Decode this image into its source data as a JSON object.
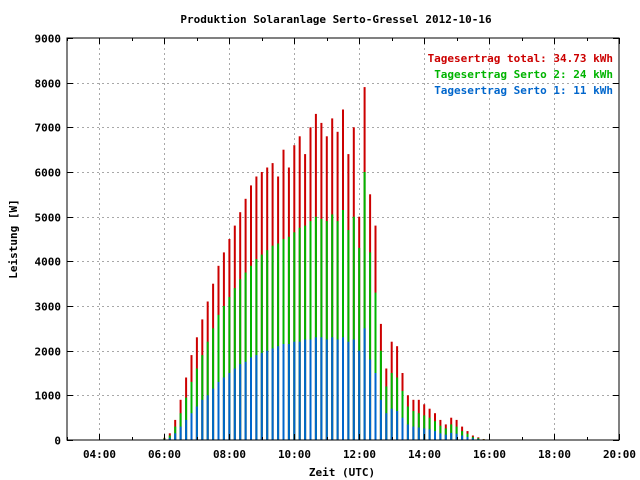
{
  "chart_data": {
    "type": "bar",
    "title": "Produktion Solaranlage Serto-Gressel 2012-10-16",
    "xlabel": "Zeit (UTC)",
    "ylabel": "Leistung [W]",
    "ylim": [
      0,
      9000
    ],
    "xlim": [
      "03:00",
      "20:00"
    ],
    "y_ticks": [
      "0",
      "1000",
      "2000",
      "3000",
      "4000",
      "5000",
      "6000",
      "7000",
      "8000",
      "9000"
    ],
    "x_ticks": [
      "04:00",
      "06:00",
      "08:00",
      "10:00",
      "12:00",
      "14:00",
      "16:00",
      "18:00",
      "20:00"
    ],
    "grid": true,
    "legend_position": "top-right",
    "legend": [
      {
        "label": "Tagesertrag total: 34.73 kWh",
        "color": "#cc0000"
      },
      {
        "label": "Tagesertrag Serto 2: 24 kWh",
        "color": "#00b400"
      },
      {
        "label": "Tagesertrag Serto 1: 11 kWh",
        "color": "#0066cc"
      }
    ],
    "series": [
      {
        "name": "Tagesertrag total: 34.73 kWh",
        "color": "#cc0000",
        "x": [
          "06:00",
          "06:10",
          "06:20",
          "06:30",
          "06:40",
          "06:50",
          "07:00",
          "07:10",
          "07:20",
          "07:30",
          "07:40",
          "07:50",
          "08:00",
          "08:10",
          "08:20",
          "08:30",
          "08:40",
          "08:50",
          "09:00",
          "09:10",
          "09:20",
          "09:30",
          "09:40",
          "09:50",
          "10:00",
          "10:10",
          "10:20",
          "10:30",
          "10:40",
          "10:50",
          "11:00",
          "11:10",
          "11:20",
          "11:30",
          "11:40",
          "11:50",
          "12:00",
          "12:10",
          "12:20",
          "12:30",
          "12:40",
          "12:50",
          "13:00",
          "13:10",
          "13:20",
          "13:30",
          "13:40",
          "13:50",
          "14:00",
          "14:10",
          "14:20",
          "14:30",
          "14:40",
          "14:50",
          "15:00",
          "15:10",
          "15:20",
          "15:30",
          "15:40",
          "15:50"
        ],
        "values": [
          50,
          150,
          450,
          900,
          1400,
          1900,
          2300,
          2700,
          3100,
          3500,
          3900,
          4200,
          4500,
          4800,
          5100,
          5400,
          5700,
          5900,
          6000,
          6100,
          6200,
          5900,
          6500,
          6100,
          6600,
          6800,
          6400,
          7000,
          7300,
          7100,
          6800,
          7200,
          6900,
          7400,
          6400,
          7000,
          5000,
          7900,
          5500,
          4800,
          2600,
          1600,
          2200,
          2100,
          1500,
          1000,
          900,
          900,
          800,
          700,
          600,
          450,
          350,
          500,
          450,
          300,
          200,
          100,
          60,
          20
        ]
      },
      {
        "name": "Tagesertrag Serto 2: 24 kWh",
        "color": "#00b400",
        "x": [
          "06:00",
          "06:10",
          "06:20",
          "06:30",
          "06:40",
          "06:50",
          "07:00",
          "07:10",
          "07:20",
          "07:30",
          "07:40",
          "07:50",
          "08:00",
          "08:10",
          "08:20",
          "08:30",
          "08:40",
          "08:50",
          "09:00",
          "09:10",
          "09:20",
          "09:30",
          "09:40",
          "09:50",
          "10:00",
          "10:10",
          "10:20",
          "10:30",
          "10:40",
          "10:50",
          "11:00",
          "11:10",
          "11:20",
          "11:30",
          "11:40",
          "11:50",
          "12:00",
          "12:10",
          "12:20",
          "12:30",
          "12:40",
          "12:50",
          "13:00",
          "13:10",
          "13:20",
          "13:30",
          "13:40",
          "13:50",
          "14:00",
          "14:10",
          "14:20",
          "14:30",
          "14:40",
          "14:50",
          "15:00",
          "15:10",
          "15:20",
          "15:30",
          "15:40",
          "15:50"
        ],
        "values": [
          35,
          100,
          300,
          600,
          950,
          1300,
          1600,
          1900,
          2200,
          2500,
          2800,
          3000,
          3200,
          3400,
          3600,
          3750,
          3900,
          4050,
          4150,
          4250,
          4350,
          4400,
          4500,
          4550,
          4650,
          4750,
          4800,
          4900,
          5000,
          4950,
          4900,
          5050,
          4900,
          5150,
          4700,
          5000,
          4300,
          6000,
          4200,
          3300,
          2000,
          1200,
          1500,
          1400,
          1100,
          750,
          650,
          600,
          550,
          500,
          420,
          320,
          260,
          350,
          300,
          200,
          140,
          70,
          40,
          15
        ]
      },
      {
        "name": "Tagesertrag Serto 1: 11 kWh",
        "color": "#0066cc",
        "x": [
          "06:00",
          "06:10",
          "06:20",
          "06:30",
          "06:40",
          "06:50",
          "07:00",
          "07:10",
          "07:20",
          "07:30",
          "07:40",
          "07:50",
          "08:00",
          "08:10",
          "08:20",
          "08:30",
          "08:40",
          "08:50",
          "09:00",
          "09:10",
          "09:20",
          "09:30",
          "09:40",
          "09:50",
          "10:00",
          "10:10",
          "10:20",
          "10:30",
          "10:40",
          "10:50",
          "11:00",
          "11:10",
          "11:20",
          "11:30",
          "11:40",
          "11:50",
          "12:00",
          "12:10",
          "12:20",
          "12:30",
          "12:40",
          "12:50",
          "13:00",
          "13:10",
          "13:20",
          "13:30",
          "13:40",
          "13:50",
          "14:00",
          "14:10",
          "14:20",
          "14:30",
          "14:40",
          "14:50",
          "15:00",
          "15:10",
          "15:20",
          "15:30",
          "15:40",
          "15:50"
        ],
        "values": [
          15,
          50,
          150,
          300,
          450,
          600,
          750,
          900,
          1000,
          1150,
          1300,
          1400,
          1500,
          1600,
          1700,
          1750,
          1850,
          1900,
          1950,
          2000,
          2050,
          2100,
          2150,
          2150,
          2200,
          2200,
          2250,
          2250,
          2300,
          2300,
          2250,
          2300,
          2250,
          2300,
          2200,
          2250,
          2000,
          2500,
          1800,
          1500,
          900,
          600,
          700,
          650,
          500,
          350,
          300,
          280,
          260,
          240,
          200,
          150,
          120,
          160,
          140,
          100,
          70,
          40,
          20,
          8
        ]
      }
    ]
  }
}
